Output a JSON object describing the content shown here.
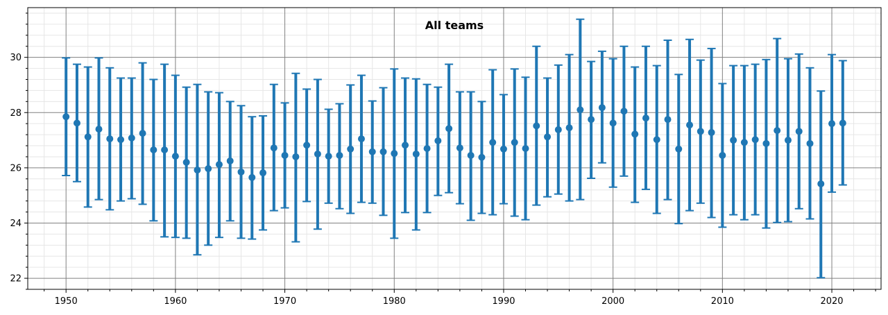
{
  "chart_data": {
    "type": "errorbar",
    "title": "All teams",
    "xlabel": "",
    "ylabel": "",
    "xlim": [
      1946.5,
      2024.5
    ],
    "ylim": [
      21.6,
      31.8
    ],
    "x_ticks": [
      1950,
      1960,
      1970,
      1980,
      1990,
      2000,
      2010,
      2020
    ],
    "y_ticks": [
      22,
      24,
      26,
      28,
      30
    ],
    "grid": {
      "major": true,
      "minor": true
    },
    "color": "#1f77b4",
    "series": [
      {
        "x": [
          1950,
          1951,
          1952,
          1953,
          1954,
          1955,
          1956,
          1957,
          1958,
          1959,
          1960,
          1961,
          1962,
          1963,
          1964,
          1965,
          1966,
          1967,
          1968,
          1969,
          1970,
          1971,
          1972,
          1973,
          1974,
          1975,
          1976,
          1977,
          1978,
          1979,
          1980,
          1981,
          1982,
          1983,
          1984,
          1985,
          1986,
          1987,
          1988,
          1989,
          1990,
          1991,
          1992,
          1993,
          1994,
          1995,
          1996,
          1997,
          1998,
          1999,
          2000,
          2001,
          2002,
          2003,
          2004,
          2005,
          2006,
          2007,
          2008,
          2009,
          2010,
          2011,
          2012,
          2013,
          2014,
          2015,
          2016,
          2017,
          2018,
          2019,
          2020,
          2021
        ],
        "mean": [
          27.85,
          27.62,
          27.12,
          27.4,
          27.05,
          27.02,
          27.08,
          27.25,
          26.65,
          26.65,
          26.42,
          26.2,
          25.92,
          25.97,
          26.12,
          26.25,
          25.85,
          25.65,
          25.82,
          26.72,
          26.45,
          26.4,
          26.82,
          26.5,
          26.42,
          26.45,
          26.68,
          27.05,
          26.58,
          26.58,
          26.52,
          26.82,
          26.5,
          26.7,
          26.98,
          27.42,
          26.72,
          26.45,
          26.38,
          26.92,
          26.68,
          26.92,
          26.7,
          27.52,
          27.12,
          27.38,
          27.45,
          28.1,
          27.75,
          28.18,
          27.62,
          28.05,
          27.22,
          27.8,
          27.02,
          27.75,
          26.68,
          27.55,
          27.32,
          27.28,
          26.45,
          27.0,
          26.92,
          27.02,
          26.88,
          27.35,
          27.0,
          27.32,
          26.88,
          25.42,
          27.6,
          27.62
        ],
        "lower": [
          25.72,
          25.5,
          24.58,
          24.85,
          24.48,
          24.8,
          24.88,
          24.68,
          24.08,
          23.5,
          23.48,
          23.45,
          22.85,
          23.2,
          23.48,
          24.08,
          23.45,
          23.42,
          23.75,
          24.45,
          24.55,
          23.32,
          24.78,
          23.78,
          24.72,
          24.52,
          24.35,
          24.75,
          24.72,
          24.28,
          23.45,
          24.38,
          23.75,
          24.38,
          25.0,
          25.1,
          24.7,
          24.1,
          24.35,
          24.3,
          24.7,
          24.25,
          24.12,
          24.65,
          24.95,
          25.05,
          24.8,
          24.85,
          25.62,
          26.18,
          25.3,
          25.7,
          24.75,
          25.22,
          24.35,
          24.85,
          23.98,
          24.45,
          24.72,
          24.2,
          23.85,
          24.3,
          24.12,
          24.3,
          23.82,
          24.02,
          24.05,
          24.52,
          24.15,
          22.02,
          25.12,
          25.38
        ],
        "upper": [
          29.98,
          29.75,
          29.65,
          29.98,
          29.62,
          29.25,
          29.25,
          29.8,
          29.2,
          29.75,
          29.35,
          28.92,
          29.02,
          28.75,
          28.72,
          28.4,
          28.25,
          27.85,
          27.88,
          29.02,
          28.35,
          29.42,
          28.85,
          29.2,
          28.12,
          28.32,
          29.0,
          29.35,
          28.42,
          28.9,
          29.58,
          29.25,
          29.22,
          29.02,
          28.92,
          29.75,
          28.75,
          28.75,
          28.4,
          29.55,
          28.65,
          29.58,
          29.28,
          30.4,
          29.25,
          29.72,
          30.1,
          31.38,
          29.85,
          30.22,
          29.95,
          30.4,
          29.65,
          30.4,
          29.7,
          30.62,
          29.38,
          30.65,
          29.9,
          30.32,
          29.05,
          29.7,
          29.7,
          29.75,
          29.92,
          30.68,
          29.95,
          30.12,
          29.62,
          28.78,
          30.1,
          29.88
        ]
      }
    ]
  }
}
